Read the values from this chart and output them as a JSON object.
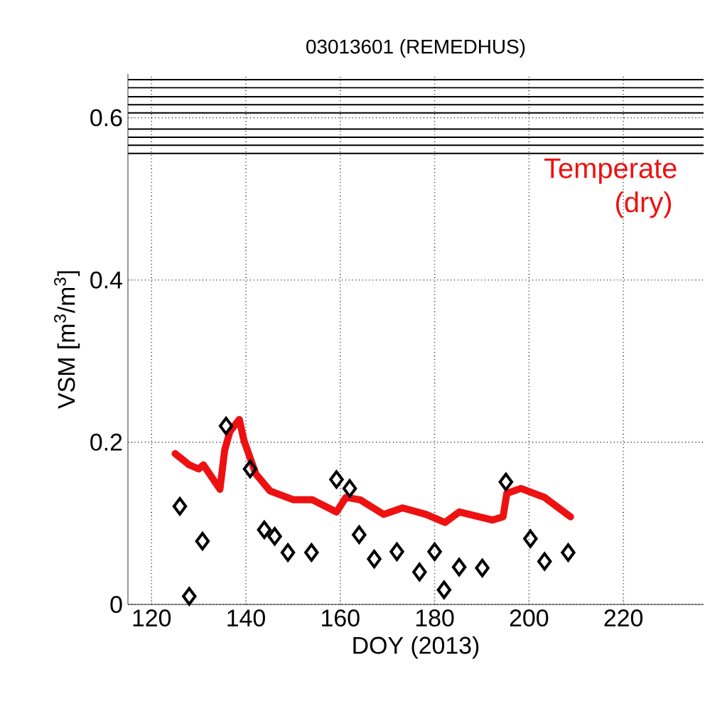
{
  "chart_data": {
    "type": "scatter",
    "title": "03013601 (REMEDHUS)",
    "xlabel": "DOY (2013)",
    "ylabel": "VSM [m$^{3}$/m$^{3}$]",
    "xlim": [
      115,
      237
    ],
    "xticks": [
      120,
      140,
      160,
      180,
      200,
      220
    ],
    "ylim": [
      0,
      0.654
    ],
    "yticks": [
      0,
      0.2,
      0.4,
      0.6
    ],
    "grid": true,
    "series": [
      {
        "type": "line",
        "color": "#ee1111",
        "x": [
          125,
          128,
          130,
          131,
          134.5,
          135.5,
          136.6,
          138.6,
          139.6,
          142.1,
          145.1,
          150.1,
          154.1,
          159.2,
          161.2,
          164.2,
          169.2,
          173.2,
          178.2,
          182.2,
          185.2,
          192.3,
          194.5,
          195.3,
          198.3,
          203.3,
          208.8
        ],
        "values": [
          0.186,
          0.172,
          0.167,
          0.172,
          0.142,
          0.19,
          0.213,
          0.228,
          0.202,
          0.161,
          0.14,
          0.129,
          0.129,
          0.114,
          0.132,
          0.129,
          0.111,
          0.119,
          0.111,
          0.101,
          0.114,
          0.104,
          0.108,
          0.137,
          0.143,
          0.132,
          0.108
        ]
      },
      {
        "color": "#000000",
        "marker": "diamond",
        "x": [
          126,
          128,
          130.8,
          135.8,
          140.9,
          143.9,
          146.1,
          148.9,
          153.9,
          159.2,
          162,
          164,
          167.2,
          172,
          176.8,
          180,
          182,
          185.2,
          190.1,
          195.1,
          200.3,
          203.3,
          208.3
        ],
        "values": [
          0.121,
          0.01,
          0.078,
          0.22,
          0.167,
          0.092,
          0.084,
          0.064,
          0.064,
          0.154,
          0.143,
          0.086,
          0.056,
          0.065,
          0.04,
          0.065,
          0.018,
          0.046,
          0.045,
          0.151,
          0.081,
          0.053,
          0.064
        ]
      }
    ],
    "ref_lines": [
      {
        "axis": "y",
        "value": 0.647,
        "color": "#000000"
      },
      {
        "axis": "y",
        "value": 0.637,
        "color": "#000000"
      },
      {
        "axis": "y",
        "value": 0.626,
        "color": "#000000"
      },
      {
        "axis": "y",
        "value": 0.616,
        "color": "#000000"
      },
      {
        "axis": "y",
        "value": 0.606,
        "color": "#000000"
      },
      {
        "axis": "y",
        "value": 0.586,
        "color": "#000000"
      },
      {
        "axis": "y",
        "value": 0.576,
        "color": "#000000"
      },
      {
        "axis": "y",
        "value": 0.566,
        "color": "#000000"
      },
      {
        "axis": "y",
        "value": 0.556,
        "color": "#000000"
      }
    ],
    "annotations": [
      "Temperate (dry)"
    ]
  }
}
